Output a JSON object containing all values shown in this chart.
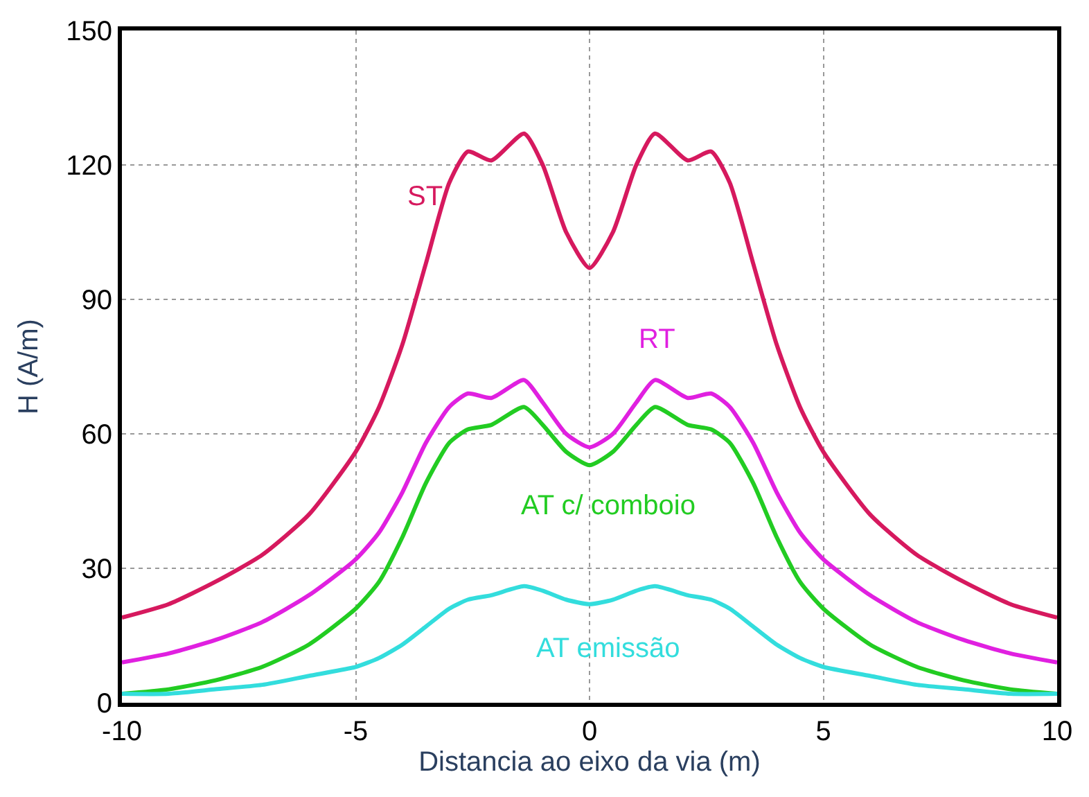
{
  "chart_data": {
    "type": "line",
    "xlabel": "Distancia ao eixo da via (m)",
    "ylabel": "H (A/m)",
    "x": [
      -10,
      -9,
      -8,
      -7,
      -6,
      -5,
      -4.5,
      -4,
      -3.5,
      -3,
      -2.6,
      -2.1,
      -1.4,
      -1,
      -0.5,
      0,
      0.5,
      1,
      1.4,
      2.1,
      2.6,
      3,
      3.5,
      4,
      4.5,
      5,
      6,
      7,
      8,
      9,
      10
    ],
    "series": [
      {
        "name": "ST",
        "color": "#d6195e",
        "values": [
          19,
          22,
          27,
          33,
          42,
          56,
          66,
          80,
          98,
          116,
          123,
          121,
          127,
          120,
          105,
          97,
          105,
          120,
          127,
          121,
          123,
          116,
          98,
          80,
          66,
          56,
          42,
          33,
          27,
          22,
          19
        ]
      },
      {
        "name": "RT",
        "color": "#e020e0",
        "values": [
          9,
          11,
          14,
          18,
          24,
          32,
          38,
          47,
          58,
          66,
          69,
          68,
          72,
          67,
          60,
          57,
          60,
          67,
          72,
          68,
          69,
          66,
          58,
          47,
          38,
          32,
          24,
          18,
          14,
          11,
          9
        ]
      },
      {
        "name": "AT c/ comboio",
        "color": "#22cc22",
        "values": [
          2,
          3,
          5,
          8,
          13,
          21,
          27,
          37,
          49,
          58,
          61,
          62,
          66,
          62,
          56,
          53,
          56,
          62,
          66,
          62,
          61,
          58,
          49,
          37,
          27,
          21,
          13,
          8,
          5,
          3,
          2
        ]
      },
      {
        "name": "AT emissão",
        "color": "#33dddd",
        "values": [
          2,
          2,
          3,
          4,
          6,
          8,
          10,
          13,
          17,
          21,
          23,
          24,
          26,
          25,
          23,
          22,
          23,
          25,
          26,
          24,
          23,
          21,
          17,
          13,
          10,
          8,
          6,
          4,
          3,
          2,
          2
        ]
      }
    ],
    "xlim": [
      -10,
      10
    ],
    "xticks": [
      -10,
      -5,
      0,
      5,
      10
    ],
    "ylim": [
      0,
      150
    ],
    "yticks": [
      0,
      30,
      60,
      90,
      120,
      150
    ],
    "grid": true,
    "legend": false,
    "line_style": "solid"
  }
}
